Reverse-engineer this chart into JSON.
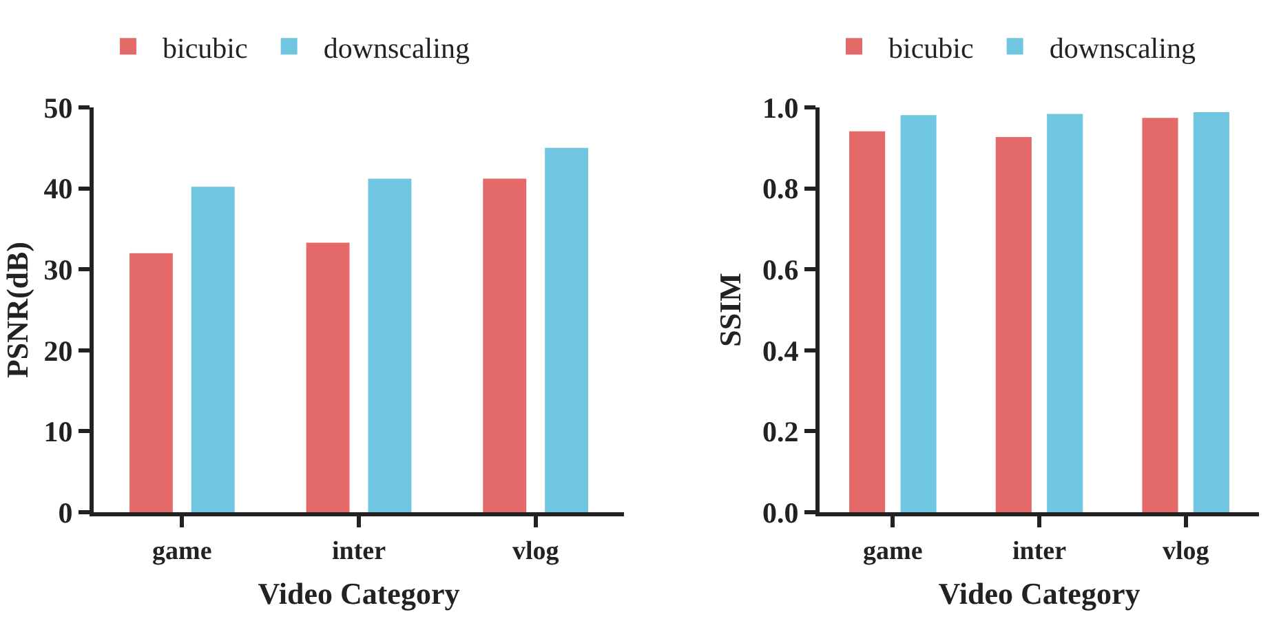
{
  "chart_data": [
    {
      "type": "bar",
      "categories": [
        "game",
        "inter",
        "vlog"
      ],
      "xlabel": "Video Category",
      "ylabel": "PSNR(dB)",
      "ylim": [
        0,
        50
      ],
      "yticks": [
        0,
        10,
        20,
        30,
        40,
        50
      ],
      "grid": false,
      "legend": "top left",
      "series": [
        {
          "name": "bicubic",
          "color": "#e46a6a",
          "values": [
            32.0,
            33.3,
            41.2
          ]
        },
        {
          "name": "downscaling",
          "color": "#70c6e1",
          "values": [
            40.2,
            41.2,
            45.0
          ]
        }
      ]
    },
    {
      "type": "bar",
      "categories": [
        "game",
        "inter",
        "vlog"
      ],
      "xlabel": "Video Category",
      "ylabel": "SSIM",
      "ylim": [
        0,
        1.0
      ],
      "yticks": [
        {
          "value": 0,
          "label": "0.0"
        },
        {
          "value": 0.2,
          "label": "0.2"
        },
        {
          "value": 0.4,
          "label": "0.4"
        },
        {
          "value": 0.6,
          "label": "0.6"
        },
        {
          "value": 0.8,
          "label": "0.8"
        },
        {
          "value": 1.0,
          "label": "1.0"
        }
      ],
      "grid": false,
      "legend": "top left",
      "series": [
        {
          "name": "bicubic",
          "color": "#e46a6a",
          "values": [
            0.941,
            0.927,
            0.974
          ]
        },
        {
          "name": "downscaling",
          "color": "#70c6e1",
          "values": [
            0.981,
            0.984,
            0.988
          ]
        }
      ]
    }
  ]
}
